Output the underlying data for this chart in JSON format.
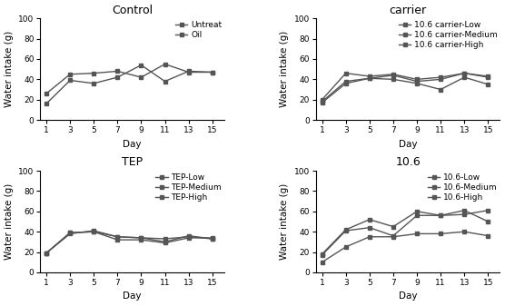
{
  "days": [
    1,
    3,
    5,
    7,
    9,
    11,
    13,
    15
  ],
  "control": {
    "title": "Control",
    "Untreat": [
      26,
      45,
      46,
      48,
      42,
      55,
      47,
      47
    ],
    "Oil": [
      16,
      39,
      36,
      42,
      54,
      38,
      48,
      47
    ]
  },
  "carrier": {
    "title": "carrier",
    "10.6 carrier-Low": [
      18,
      38,
      41,
      44,
      38,
      40,
      46,
      42
    ],
    "10.6 carrier-Medium": [
      20,
      46,
      43,
      45,
      40,
      42,
      46,
      43
    ],
    "10.6 carrier-High": [
      17,
      36,
      41,
      40,
      36,
      30,
      42,
      35
    ]
  },
  "tep": {
    "title": "TEP",
    "TEP-Low": [
      19,
      39,
      40,
      35,
      34,
      33,
      35,
      33
    ],
    "TEP-Medium": [
      19,
      38,
      41,
      35,
      34,
      30,
      36,
      33
    ],
    "TEP-High": [
      19,
      39,
      40,
      32,
      32,
      29,
      34,
      34
    ]
  },
  "ten6": {
    "title": "10.6",
    "10.6-Low": [
      18,
      42,
      52,
      45,
      60,
      56,
      61,
      50
    ],
    "10.6-Medium": [
      17,
      41,
      44,
      36,
      56,
      56,
      57,
      61
    ],
    "10.6-High": [
      10,
      25,
      35,
      35,
      38,
      38,
      40,
      36
    ]
  },
  "ylabel": "Water intake (g)",
  "xlabel": "Day",
  "ylim": [
    0,
    100
  ],
  "yticks": [
    0,
    20,
    40,
    60,
    80,
    100
  ],
  "marker": "s",
  "markersize": 3.5,
  "linewidth": 1.0,
  "color": "#555555",
  "legend_fontsize": 6.5,
  "axis_label_fontsize": 7.5,
  "tick_fontsize": 6.5,
  "title_fontsize": 9
}
